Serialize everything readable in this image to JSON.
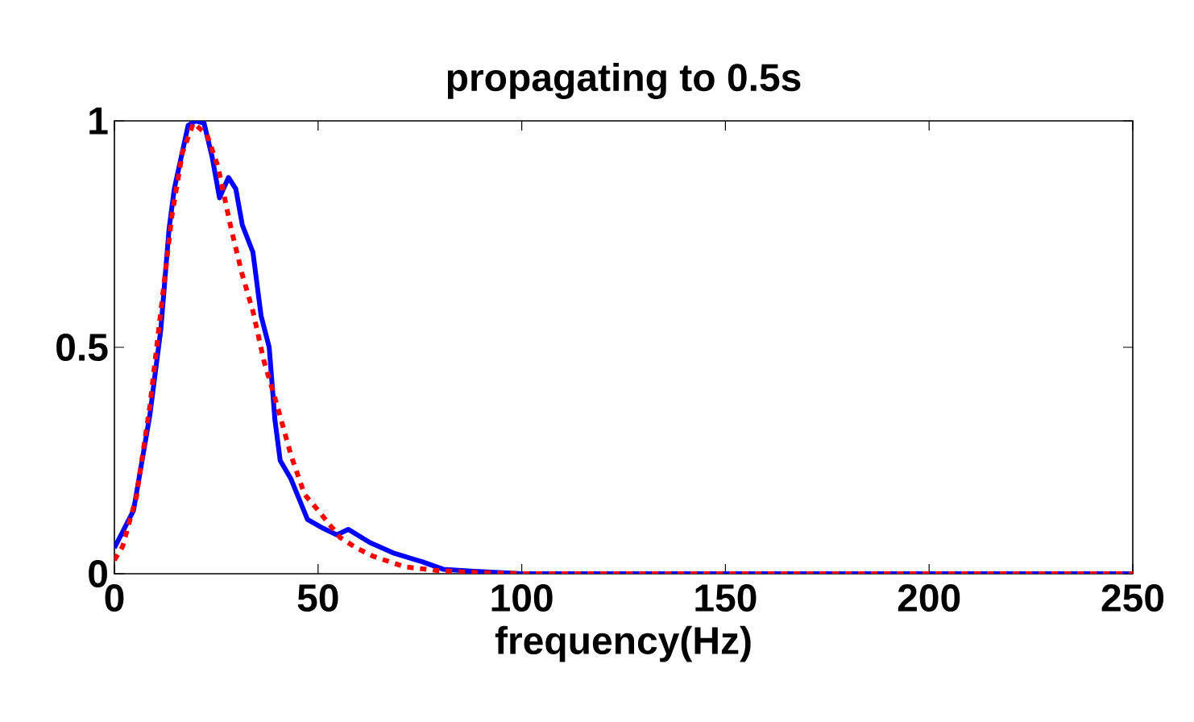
{
  "chart_data": {
    "type": "line",
    "title": "propagating to 0.5s",
    "xlabel": "frequency(Hz)",
    "xlim": [
      0,
      250
    ],
    "ylim": [
      0,
      1
    ],
    "xticks": [
      0,
      50,
      100,
      150,
      200,
      250
    ],
    "yticks": [
      0,
      0.5,
      1
    ],
    "series": [
      {
        "color": "#0000ff",
        "line_style": "solid",
        "x": [
          0,
          4.7,
          8.7,
          11.4,
          13.4,
          14.7,
          18.1,
          20,
          22,
          24,
          25.8,
          28,
          29.8,
          31.4,
          34,
          36,
          38,
          39.4,
          40.7,
          43.3,
          47.4,
          51.3,
          54.6,
          57.4,
          62.7,
          68.7,
          75.4,
          80.7,
          87.5,
          100,
          150,
          200,
          250
        ],
        "values": [
          0.057,
          0.14,
          0.35,
          0.54,
          0.76,
          0.85,
          0.99,
          1.0,
          0.995,
          0.92,
          0.83,
          0.875,
          0.85,
          0.77,
          0.71,
          0.57,
          0.5,
          0.34,
          0.25,
          0.21,
          0.12,
          0.1,
          0.086,
          0.098,
          0.069,
          0.045,
          0.027,
          0.01,
          0.006,
          0,
          0,
          0,
          0
        ]
      },
      {
        "color": "#ff0000",
        "line_style": "dotted",
        "x": [
          0,
          2,
          5.4,
          8.7,
          11.4,
          14.1,
          16.7,
          19.4,
          22.7,
          25.4,
          28.7,
          31.4,
          34,
          36.7,
          40,
          43.4,
          46.7,
          50,
          55.4,
          59.4,
          63.4,
          71.4,
          79.4,
          87.4,
          100,
          150,
          200,
          250
        ],
        "values": [
          0.03,
          0.06,
          0.17,
          0.37,
          0.58,
          0.79,
          0.93,
          0.995,
          0.97,
          0.9,
          0.76,
          0.66,
          0.58,
          0.47,
          0.37,
          0.26,
          0.175,
          0.14,
          0.08,
          0.057,
          0.039,
          0.015,
          0.007,
          0.003,
          0,
          0,
          0,
          0
        ]
      }
    ]
  }
}
